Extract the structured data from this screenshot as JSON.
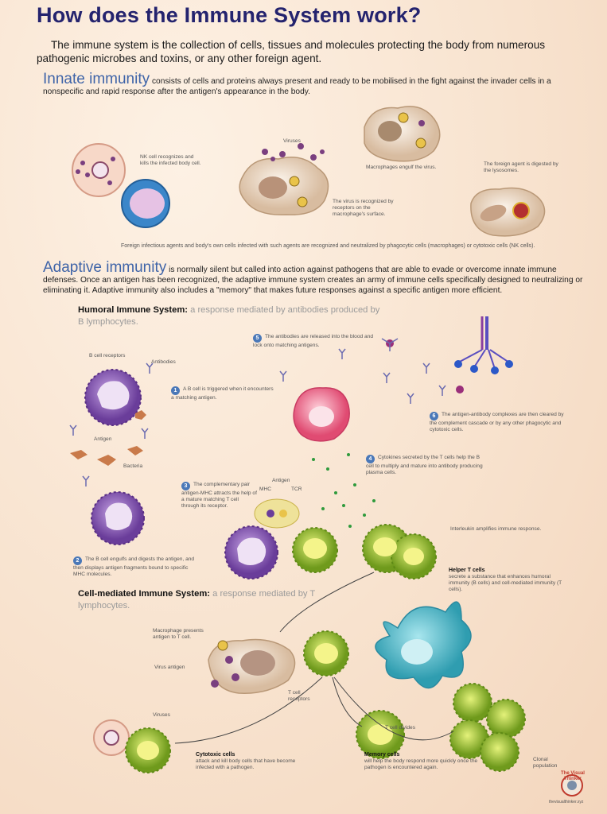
{
  "title": "How does the Immune System work?",
  "intro": "The immune system is the collection of cells, tissues and molecules protecting the body from numerous pathogenic microbes and toxins, or any other foreign agent.",
  "innate": {
    "heading": "Innate immunity",
    "text": " consists of cells and proteins always present and ready to be mobilised in the fight against the invader cells in a nonspecific and rapid response after the antigen's appearance in the body.",
    "labels": {
      "nk": "NK cell recognizes and kills the infected body cell.",
      "viruses": "Viruses",
      "engulf": "Macrophages engulf the virus.",
      "digested": "The foreign agent is digested by the lysosomes.",
      "recognized": "The virus is recognized by receptors on the macrophage's surface.",
      "footer": "Foreign infectious agents and body's own cells infected with such agents are recognized and neutralized by phagocytic cells (macrophages) or cytotoxic cells (NK cells)."
    }
  },
  "adaptive": {
    "heading": "Adaptive immunity",
    "text": " is normally silent but called into action against pathogens that are able to evade or overcome innate immune defenses. Once an antigen has been recognized, the adaptive immune system creates an army of immune cells specifically designed to neutralizing or eliminating it. Adaptive immunity also includes a \"memory\" that makes future responses against a specific antigen more efficient."
  },
  "humoral": {
    "heading": "Humoral Immune System:",
    "subtitle": " a response mediated by antibodies produced by B lymphocytes.",
    "labels": {
      "b_receptors": "B cell receptors",
      "antibodies": "Antibodies",
      "antigen": "Antigen",
      "bacteria": "Bacteria",
      "mhc": "MHC",
      "tcr": "TCR",
      "antigen2": "Antigen",
      "interleukin": "Interleukin amplifies immune response."
    },
    "steps": [
      {
        "n": "1",
        "text": "A B cell is triggered when it encounters a matching antigen."
      },
      {
        "n": "2",
        "text": "The B cell engulfs and digests the antigen, and then displays antigen fragments bound to specific MHC molecules."
      },
      {
        "n": "3",
        "text": "The complementary pair antigen-MHC attracts the help of a mature matching T cell through its receptor."
      },
      {
        "n": "4",
        "text": "Cytokines secreted by the T cells help the B cell to multiply and mature into antibody producing plasma cells."
      },
      {
        "n": "5",
        "text": "The antibodies are released into the blood and lock onto matching antigens."
      },
      {
        "n": "6",
        "text": "The antigen-antibody complexes are then cleared by the complement cascade or by any other phagocytic and cytotoxic cells."
      }
    ]
  },
  "helper": {
    "heading": "Helper T cells",
    "text": "secrete a substance that enhances humoral immunity (B cells) and cell-mediated immunity (T cells)."
  },
  "cellmediated": {
    "heading": "Cell-mediated Immune System:",
    "subtitle": " a response mediated by T lymphocytes.",
    "labels": {
      "presents": "Macrophage presents antigen to T cell.",
      "virus_antigen": "Virus antigen",
      "t_receptors": "T cell receptors",
      "viruses": "Viruses",
      "divides": "T cell divides",
      "clonal": "Clonal population"
    },
    "cytotoxic": {
      "heading": "Cytotoxic cells",
      "text": "attack and kill body cells that have become infected with a pathogen."
    },
    "memory": {
      "heading": "Memory cells",
      "text": "will help the body respond more quickly once the pathogen is encountered again."
    }
  },
  "logo": {
    "line1": "The Visual",
    "line2": "Thinker",
    "url": "thevisualthinker.xyz"
  },
  "colors": {
    "title": "#24236e",
    "heading_blue": "#3f64a8",
    "step_badge": "#4a78b8",
    "b_cell": "#8a5bb8",
    "t_cell": "#a6c83a",
    "dendritic": "#43b5c6",
    "plasma": "#e2527a"
  }
}
